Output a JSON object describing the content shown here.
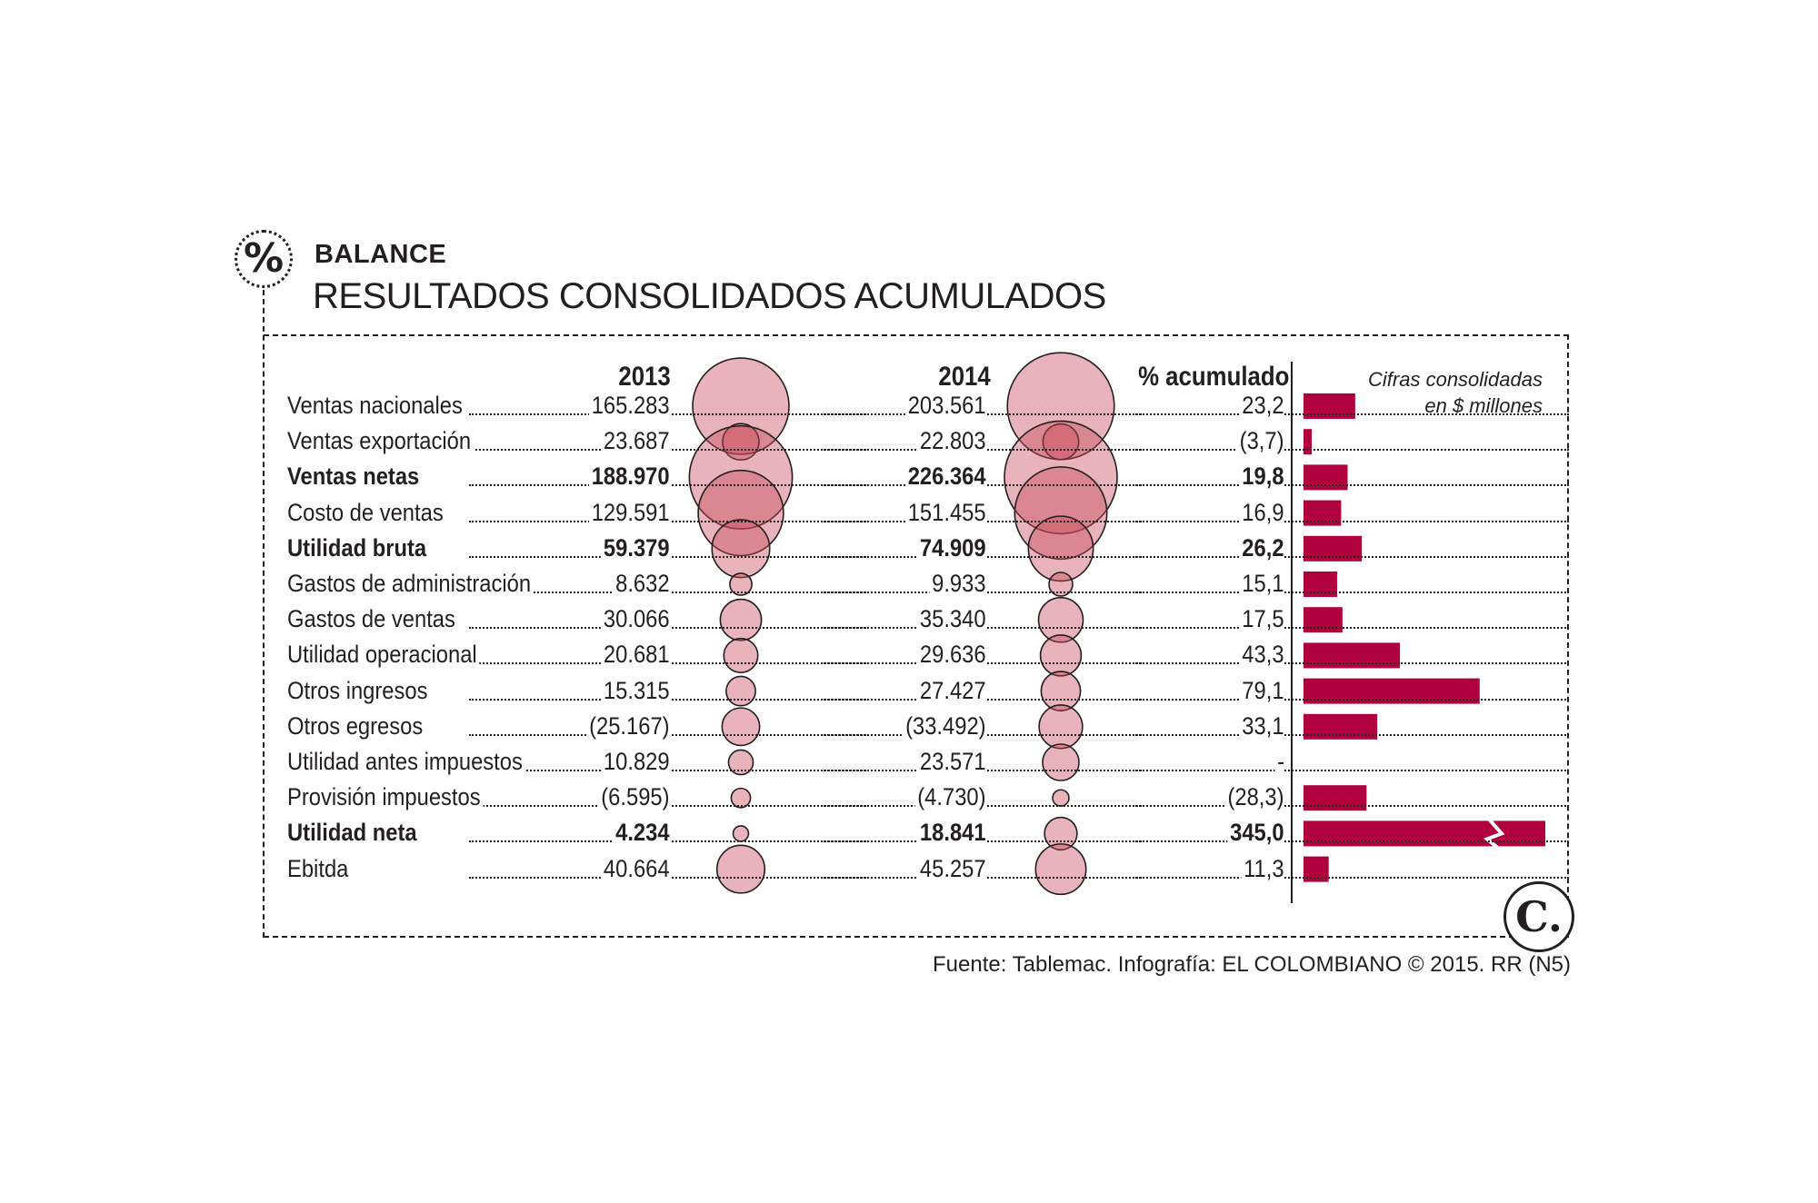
{
  "header": {
    "badge_symbol": "%",
    "kicker": "BALANCE",
    "title": "RESULTADOS CONSOLIDADOS ACUMULADOS"
  },
  "table": {
    "col_2013": "2013",
    "col_2014": "2014",
    "col_pct": "% acumulado",
    "note_line1": "Cifras consolidadas",
    "note_line2": "en $ millones"
  },
  "chart_data": {
    "type": "table",
    "columns": [
      "2013",
      "2014",
      "% acumulado"
    ],
    "unit_note": "Cifras consolidadas en $ millones",
    "bar_color": "#b0003e",
    "bubble_color": "#c84b5a",
    "rows": [
      {
        "label": "Ventas nacionales",
        "v2013": "165.283",
        "v2014": "203.561",
        "pct": "23,2",
        "n2013": 165283,
        "n2014": 203561,
        "npct": 23.2,
        "bold": false
      },
      {
        "label": "Ventas exportación",
        "v2013": "23.687",
        "v2014": "22.803",
        "pct": "(3,7)",
        "n2013": 23687,
        "n2014": 22803,
        "npct": 3.7,
        "bold": false
      },
      {
        "label": "Ventas netas",
        "v2013": "188.970",
        "v2014": "226.364",
        "pct": "19,8",
        "n2013": 188970,
        "n2014": 226364,
        "npct": 19.8,
        "bold": true
      },
      {
        "label": "Costo de ventas",
        "v2013": "129.591",
        "v2014": "151.455",
        "pct": "16,9",
        "n2013": 129591,
        "n2014": 151455,
        "npct": 16.9,
        "bold": false
      },
      {
        "label": "Utilidad bruta",
        "v2013": "59.379",
        "v2014": "74.909",
        "pct": "26,2",
        "n2013": 59379,
        "n2014": 74909,
        "npct": 26.2,
        "bold": true
      },
      {
        "label": "Gastos de administración",
        "v2013": "8.632",
        "v2014": "9.933",
        "pct": "15,1",
        "n2013": 8632,
        "n2014": 9933,
        "npct": 15.1,
        "bold": false
      },
      {
        "label": "Gastos de ventas",
        "v2013": "30.066",
        "v2014": "35.340",
        "pct": "17,5",
        "n2013": 30066,
        "n2014": 35340,
        "npct": 17.5,
        "bold": false
      },
      {
        "label": "Utilidad operacional",
        "v2013": "20.681",
        "v2014": "29.636",
        "pct": "43,3",
        "n2013": 20681,
        "n2014": 29636,
        "npct": 43.3,
        "bold": false
      },
      {
        "label": "Otros ingresos",
        "v2013": "15.315",
        "v2014": "27.427",
        "pct": "79,1",
        "n2013": 15315,
        "n2014": 27427,
        "npct": 79.1,
        "bold": false
      },
      {
        "label": "Otros egresos",
        "v2013": "(25.167)",
        "v2014": "(33.492)",
        "pct": "33,1",
        "n2013": 25167,
        "n2014": 33492,
        "npct": 33.1,
        "bold": false
      },
      {
        "label": "Utilidad antes impuestos",
        "v2013": "10.829",
        "v2014": "23.571",
        "pct": "-",
        "n2013": 10829,
        "n2014": 23571,
        "npct": null,
        "bold": false
      },
      {
        "label": "Provisión impuestos",
        "v2013": "(6.595)",
        "v2014": "(4.730)",
        "pct": "(28,3)",
        "n2013": 6595,
        "n2014": 4730,
        "npct": 28.3,
        "bold": false
      },
      {
        "label": "Utilidad neta",
        "v2013": "4.234",
        "v2014": "18.841",
        "pct": "345,0",
        "n2013": 4234,
        "n2014": 18841,
        "npct": 345.0,
        "bold": true,
        "bar_truncated": true
      },
      {
        "label": "Ebitda",
        "v2013": "40.664",
        "v2014": "45.257",
        "pct": "11,3",
        "n2013": 40664,
        "n2014": 45257,
        "npct": 11.3,
        "bold": false
      }
    ]
  },
  "footer": {
    "logo_letter": "C.",
    "source": "Fuente: Tablemac. Infografía: EL COLOMBIANO © 2015. RR (N5)"
  }
}
